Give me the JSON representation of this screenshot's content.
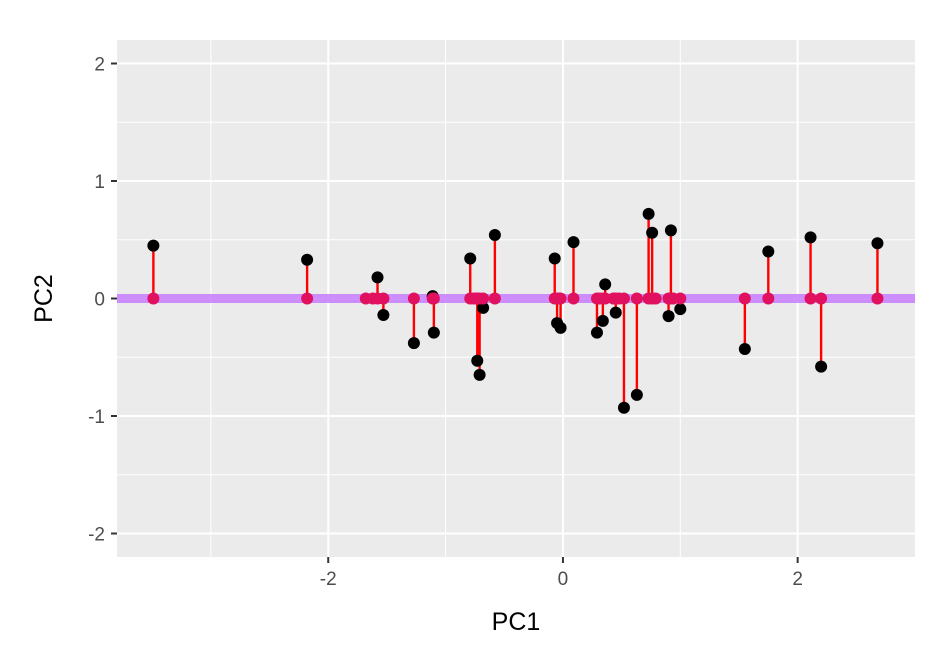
{
  "chart_data": {
    "type": "scatter",
    "xlabel": "PC1",
    "ylabel": "PC2",
    "xlim": [
      -3.8,
      3.0
    ],
    "ylim": [
      -2.2,
      2.2
    ],
    "x_ticks": [
      -2,
      0,
      2
    ],
    "x_tick_labels": [
      "-2",
      "0",
      "2"
    ],
    "y_ticks": [
      -2,
      -1,
      0,
      1,
      2
    ],
    "y_tick_labels": [
      "-2",
      "-1",
      "0",
      "1",
      "2"
    ],
    "grid": true,
    "background": "#ebebeb",
    "projection_line": {
      "y": 0,
      "color": "#c77cff"
    },
    "segment_color": "#ff0000",
    "point_color": "#000000",
    "projected_point_color": "#e0115f",
    "points": [
      {
        "x": -3.49,
        "y": 0.45
      },
      {
        "x": -2.18,
        "y": 0.33
      },
      {
        "x": -1.58,
        "y": 0.18
      },
      {
        "x": -1.53,
        "y": -0.14
      },
      {
        "x": -1.27,
        "y": -0.38
      },
      {
        "x": -1.11,
        "y": 0.02
      },
      {
        "x": -1.1,
        "y": -0.29
      },
      {
        "x": -0.79,
        "y": 0.34
      },
      {
        "x": -0.73,
        "y": -0.53
      },
      {
        "x": -0.71,
        "y": -0.65
      },
      {
        "x": -0.68,
        "y": -0.08
      },
      {
        "x": -0.58,
        "y": 0.54
      },
      {
        "x": -0.07,
        "y": 0.34
      },
      {
        "x": -0.05,
        "y": -0.21
      },
      {
        "x": -0.02,
        "y": -0.25
      },
      {
        "x": 0.09,
        "y": 0.48
      },
      {
        "x": 0.29,
        "y": -0.29
      },
      {
        "x": 0.34,
        "y": -0.19
      },
      {
        "x": 0.36,
        "y": 0.12
      },
      {
        "x": 0.45,
        "y": -0.12
      },
      {
        "x": 0.52,
        "y": -0.93
      },
      {
        "x": 0.63,
        "y": -0.82
      },
      {
        "x": 0.73,
        "y": 0.72
      },
      {
        "x": 0.76,
        "y": 0.56
      },
      {
        "x": 0.9,
        "y": -0.15
      },
      {
        "x": 0.92,
        "y": 0.58
      },
      {
        "x": 1.0,
        "y": -0.09
      },
      {
        "x": 1.55,
        "y": -0.43
      },
      {
        "x": 1.75,
        "y": 0.4
      },
      {
        "x": 2.11,
        "y": 0.52
      },
      {
        "x": 2.2,
        "y": -0.58
      },
      {
        "x": 2.68,
        "y": 0.47
      }
    ],
    "extra_projected_x": [
      -1.68,
      -1.62,
      -0.76,
      -0.74,
      -0.03,
      0.31,
      0.43,
      0.48,
      0.79,
      0.94
    ]
  }
}
